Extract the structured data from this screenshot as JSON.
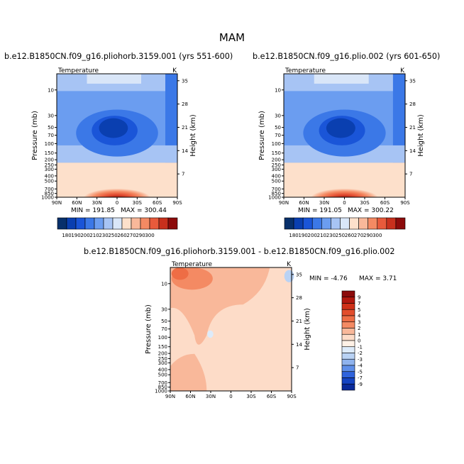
{
  "figure": {
    "title": "MAM",
    "x_tick_labels": [
      "90N",
      "60N",
      "30N",
      "0",
      "30S",
      "60S",
      "90S"
    ],
    "pressure_ticks": [
      "10",
      "30",
      "50",
      "70",
      "100",
      "150",
      "200",
      "250",
      "300",
      "400",
      "500",
      "700",
      "850",
      "1000"
    ],
    "height_ticks": [
      "35",
      "28",
      "21",
      "14",
      "7"
    ],
    "ylabel": "Pressure (mb)",
    "ylabel2": "Height (km)",
    "var_label": "Temperature",
    "units": "K"
  },
  "panels": [
    {
      "title": "b.e12.B1850CN.f09_g16.pliohorb.3159.001 (yrs 551-600)",
      "min_text": "MIN = 191.85",
      "max_text": "MAX = 300.44"
    },
    {
      "title": "b.e12.B1850CN.f09_g16.plio.002 (yrs 601-650)",
      "min_text": "MIN = 191.05",
      "max_text": "MAX = 300.22"
    },
    {
      "title": "b.e12.B1850CN.f09_g16.pliohorb.3159.001 - b.e12.B1850CN.f09_g16.plio.002",
      "min_text": "MIN = -4.76",
      "max_text": "MAX = 3.71"
    }
  ],
  "colorbar_abs": {
    "labels": [
      "180",
      "190",
      "200",
      "210",
      "230",
      "250",
      "260",
      "270",
      "290",
      "300"
    ],
    "colors": [
      "#08306b",
      "#0a3fb0",
      "#1a55d8",
      "#3b78e7",
      "#6b9df0",
      "#a7c4f4",
      "#d9e6f8",
      "#fde0cb",
      "#f9b89a",
      "#f48a63",
      "#e85a3b",
      "#c8301d",
      "#8c0b0b"
    ]
  },
  "colorbar_diff": {
    "labels": [
      "9",
      "7",
      "5",
      "4",
      "3",
      "2",
      "1",
      "0",
      "-1",
      "-2",
      "-3",
      "-4",
      "-5",
      "-7",
      "-9"
    ],
    "colors": [
      "#8c0b0b",
      "#b2180f",
      "#cf3018",
      "#e24d2c",
      "#ee6d45",
      "#f48a63",
      "#f9b89a",
      "#fddcc8",
      "#fff1e6",
      "#ddebfa",
      "#b9d2f4",
      "#8fb3ee",
      "#5f8fe9",
      "#2f63dc",
      "#1544c2",
      "#0a2a9a"
    ]
  },
  "chart_data": [
    {
      "type": "heatmap",
      "title": "b.e12.B1850CN.f09_g16.pliohorb.3159.001 (yrs 551-600)",
      "variable": "Temperature",
      "units": "K",
      "x": [
        "90N",
        "60N",
        "30N",
        "0",
        "30S",
        "60S",
        "90S"
      ],
      "y": [
        10,
        30,
        50,
        70,
        100,
        150,
        200,
        250,
        300,
        400,
        500,
        700,
        850,
        1000
      ],
      "levels": [
        180,
        190,
        200,
        210,
        230,
        250,
        260,
        270,
        290,
        300
      ],
      "min": 191.85,
      "max": 300.44
    },
    {
      "type": "heatmap",
      "title": "b.e12.B1850CN.f09_g16.plio.002 (yrs 601-650)",
      "variable": "Temperature",
      "units": "K",
      "x": [
        "90N",
        "60N",
        "30N",
        "0",
        "30S",
        "60S",
        "90S"
      ],
      "y": [
        10,
        30,
        50,
        70,
        100,
        150,
        200,
        250,
        300,
        400,
        500,
        700,
        850,
        1000
      ],
      "levels": [
        180,
        190,
        200,
        210,
        230,
        250,
        260,
        270,
        290,
        300
      ],
      "min": 191.05,
      "max": 300.22
    },
    {
      "type": "heatmap",
      "title": "b.e12.B1850CN.f09_g16.pliohorb.3159.001 - b.e12.B1850CN.f09_g16.plio.002",
      "variable": "Temperature",
      "units": "K",
      "x": [
        "90N",
        "60N",
        "30N",
        "0",
        "30S",
        "60S",
        "90S"
      ],
      "y": [
        10,
        30,
        50,
        70,
        100,
        150,
        200,
        250,
        300,
        400,
        500,
        700,
        850,
        1000
      ],
      "levels": [
        -9,
        -7,
        -5,
        -4,
        -3,
        -2,
        -1,
        0,
        1,
        2,
        3,
        4,
        5,
        7,
        9
      ],
      "min": -4.76,
      "max": 3.71
    }
  ]
}
